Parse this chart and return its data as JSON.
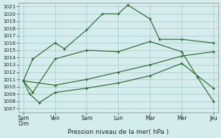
{
  "xlabel": "Pression niveau de la mer( hPa )",
  "ylim": [
    1006.5,
    1021.5
  ],
  "ytick_vals": [
    1007,
    1008,
    1009,
    1010,
    1011,
    1012,
    1013,
    1014,
    1015,
    1016,
    1017,
    1018,
    1019,
    1020,
    1021
  ],
  "x_labels": [
    "Sam\nDim",
    "Ven",
    "Sam",
    "Lun",
    "Mar",
    "Mer",
    "Jeu"
  ],
  "x_positions": [
    0,
    1,
    2,
    3,
    4,
    5,
    6
  ],
  "bg_color": "#d4ecec",
  "grid_color": "#a0c8c8",
  "line_color": "#2d6e2d",
  "line1_x": [
    0,
    0.3,
    1,
    1.3,
    2,
    2.5,
    3,
    3.3,
    4,
    4.3,
    5,
    6
  ],
  "line1_y": [
    1010.8,
    1013.8,
    1016.0,
    1015.2,
    1017.8,
    1020.0,
    1020.0,
    1021.2,
    1019.3,
    1016.5,
    1016.5,
    1016.0
  ],
  "line2_x": [
    0,
    0.2,
    0.5,
    1,
    2,
    3,
    4,
    5,
    6
  ],
  "line2_y": [
    1010.8,
    1009.0,
    1007.8,
    1009.2,
    1009.8,
    1010.5,
    1011.5,
    1013.2,
    1009.8
  ],
  "line3_x": [
    0,
    1,
    2,
    3,
    4,
    5,
    6
  ],
  "line3_y": [
    1010.8,
    1010.2,
    1011.0,
    1012.0,
    1013.0,
    1014.2,
    1014.8
  ],
  "line4_x": [
    0,
    0.3,
    1,
    2,
    3,
    4,
    5,
    5.5,
    6
  ],
  "line4_y": [
    1010.8,
    1009.2,
    1013.8,
    1015.0,
    1014.8,
    1016.2,
    1014.8,
    1011.3,
    1008.0
  ]
}
